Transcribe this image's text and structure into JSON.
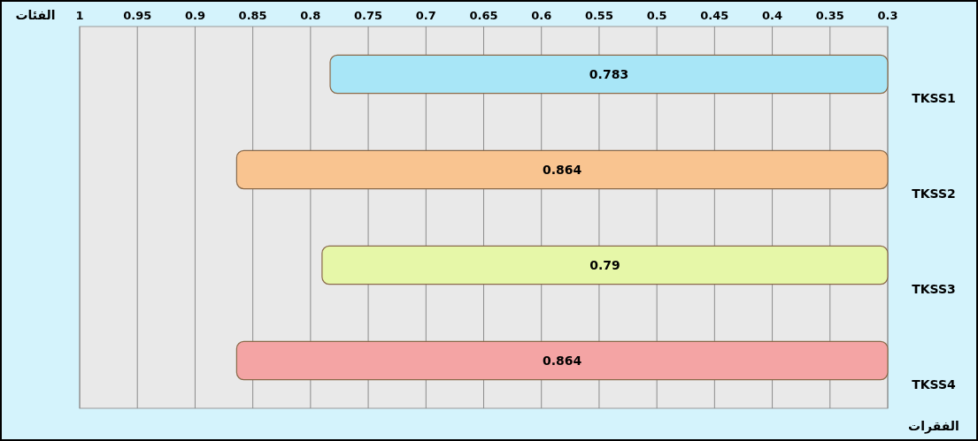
{
  "chart_data": {
    "type": "bar",
    "orientation": "horizontal",
    "xlabel": "الفئات",
    "ylabel": "الفقرات",
    "categories": [
      "TKSS1",
      "TKSS2",
      "TKSS3",
      "TKSS4"
    ],
    "values": [
      0.783,
      0.864,
      0.79,
      0.864
    ],
    "colors": [
      "#a8e6f7",
      "#f9c490",
      "#e6f7a8",
      "#f4a4a4"
    ],
    "xlim": [
      1,
      0.3
    ],
    "xticks": [
      1,
      0.95,
      0.9,
      0.85,
      0.8,
      0.75,
      0.7,
      0.65,
      0.6,
      0.55,
      0.5,
      0.45,
      0.4,
      0.35,
      0.3
    ],
    "grid": "x",
    "data_labels": true
  }
}
